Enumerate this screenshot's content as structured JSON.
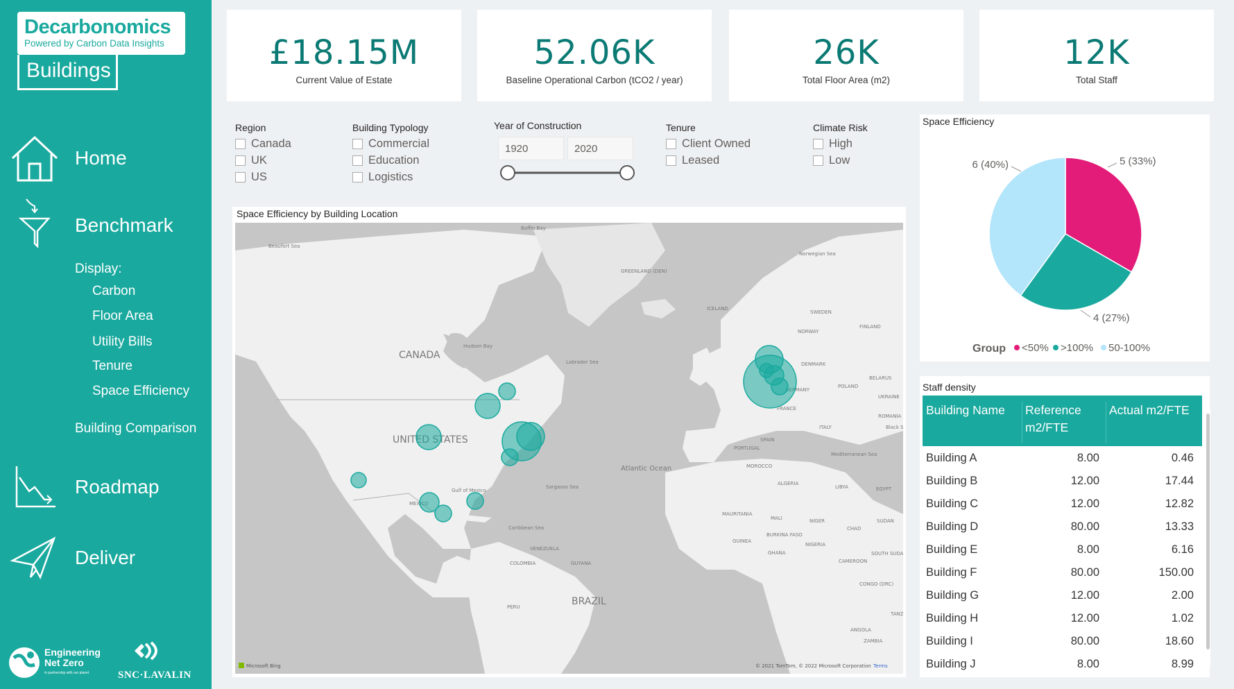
{
  "sidebar": {
    "logo_title": "Decarbonomics",
    "logo_sub": "Powered by Carbon Data Insights",
    "logo_bottom": "Buildings",
    "nav": [
      {
        "label": "Home",
        "icon": "home-icon"
      },
      {
        "label": "Benchmark",
        "icon": "funnel-icon"
      },
      {
        "label": "Roadmap",
        "icon": "chart-down-icon"
      },
      {
        "label": "Deliver",
        "icon": "paper-plane-icon"
      }
    ],
    "display_label": "Display:",
    "display_items": [
      "Carbon",
      "Floor Area",
      "Utility Bills",
      "Tenure",
      "Space Efficiency"
    ],
    "building_comparison": "Building Comparison",
    "footer_left": "Engineering Net Zero",
    "footer_left_sub": "in partnership with our planet",
    "footer_right": "SNC·LAVALIN"
  },
  "kpis": [
    {
      "value": "£18.15M",
      "label": "Current Value of Estate"
    },
    {
      "value": "52.06K",
      "label": "Baseline Operational Carbon (tCO2 / year)"
    },
    {
      "value": "26K",
      "label": "Total Floor Area (m2)"
    },
    {
      "value": "12K",
      "label": "Total Staff"
    }
  ],
  "filters": {
    "region": {
      "title": "Region",
      "options": [
        "Canada",
        "UK",
        "US"
      ]
    },
    "typology": {
      "title": "Building Typology",
      "options": [
        "Commercial",
        "Education",
        "Logistics"
      ]
    },
    "year": {
      "title": "Year of Construction",
      "from": "1920",
      "to": "2020"
    },
    "tenure": {
      "title": "Tenure",
      "options": [
        "Client Owned",
        "Leased"
      ]
    },
    "climate": {
      "title": "Climate Risk",
      "options": [
        "High",
        "Low"
      ]
    }
  },
  "map": {
    "title": "Space Efficiency by Building Location",
    "labels": {
      "canada": "CANADA",
      "us": "UNITED STATES",
      "brazil": "BRAZIL",
      "atlantic": "Atlantic\nOcean",
      "baffin": "Baffin Bay",
      "beaufort": "Beaufort Sea",
      "greenland": "GREENLAND\n(DEN)",
      "iceland": "ICELAND",
      "norwegian": "Norwegian Sea",
      "sweden": "SWEDEN",
      "norway": "NORWAY",
      "finland": "FINLAND",
      "hudson": "Hudson Bay",
      "labrador": "Labrador Sea",
      "mexico": "MEXICO",
      "gulf": "Gulf of\nMexico",
      "sargasso": "Sargasso Sea",
      "caribbean": "Caribbean Sea",
      "venezuela": "VENEZUELA",
      "colombia": "COLOMBIA",
      "guyana": "GUYANA",
      "peru": "PERU",
      "spain": "SPAIN",
      "portugal": "PORTUGAL",
      "france": "FRANCE",
      "germany": "GERMANY",
      "poland": "POLAND",
      "denmark": "DENMARK",
      "belarus": "BELARUS",
      "ukraine": "UKRAINE",
      "romania": "ROMANIA",
      "italy": "ITALY",
      "blacksea": "Black S",
      "morocco": "MOROCCO",
      "algeria": "ALGERIA",
      "libya": "LIBYA",
      "egypt": "EGYPT",
      "mauritania": "MAURITANIA",
      "mali": "MALI",
      "niger": "NIGER",
      "chad": "CHAD",
      "sudan": "SUDAN",
      "nigeria": "NIGERIA",
      "guinea": "GUINEA",
      "ghana": "GHANA",
      "burkina": "BURKINA\nFASO",
      "cameroon": "CAMEROON",
      "southsudan": "SOUTH SUDAN",
      "congo": "CONGO (DRC)",
      "angola": "ANGOLA",
      "zambia": "ZAMBIA",
      "tanz": "TANZ",
      "med": "Mediterranean Sea"
    },
    "credit": "© 2021 TomTom, © 2022 Microsoft Corporation",
    "terms": "Terms",
    "bing": "Microsoft Bing"
  },
  "space_efficiency": {
    "title": "Space Efficiency",
    "legend_title": "Group",
    "chart_data": {
      "type": "pie",
      "title": "Space Efficiency",
      "slices": [
        {
          "name": "<50%",
          "value": 5,
          "label": "5 (33%)",
          "color": "#e31c79"
        },
        {
          "name": ">100%",
          "value": 4,
          "label": "4 (27%)",
          "color": "#19a99e"
        },
        {
          "name": "50-100%",
          "value": 6,
          "label": "6 (40%)",
          "color": "#b3e5fb"
        }
      ]
    }
  },
  "staff_density": {
    "title": "Staff density",
    "columns": [
      "Building Name",
      "Reference m2/FTE",
      "Actual m2/FTE"
    ],
    "rows": [
      [
        "Building A",
        "8.00",
        "0.46"
      ],
      [
        "Building B",
        "12.00",
        "17.44"
      ],
      [
        "Building C",
        "12.00",
        "12.82"
      ],
      [
        "Building D",
        "80.00",
        "13.33"
      ],
      [
        "Building E",
        "8.00",
        "6.16"
      ],
      [
        "Building F",
        "80.00",
        "150.00"
      ],
      [
        "Building G",
        "12.00",
        "2.00"
      ],
      [
        "Building H",
        "12.00",
        "1.02"
      ],
      [
        "Building I",
        "80.00",
        "18.60"
      ],
      [
        "Building J",
        "8.00",
        "8.99"
      ]
    ]
  }
}
